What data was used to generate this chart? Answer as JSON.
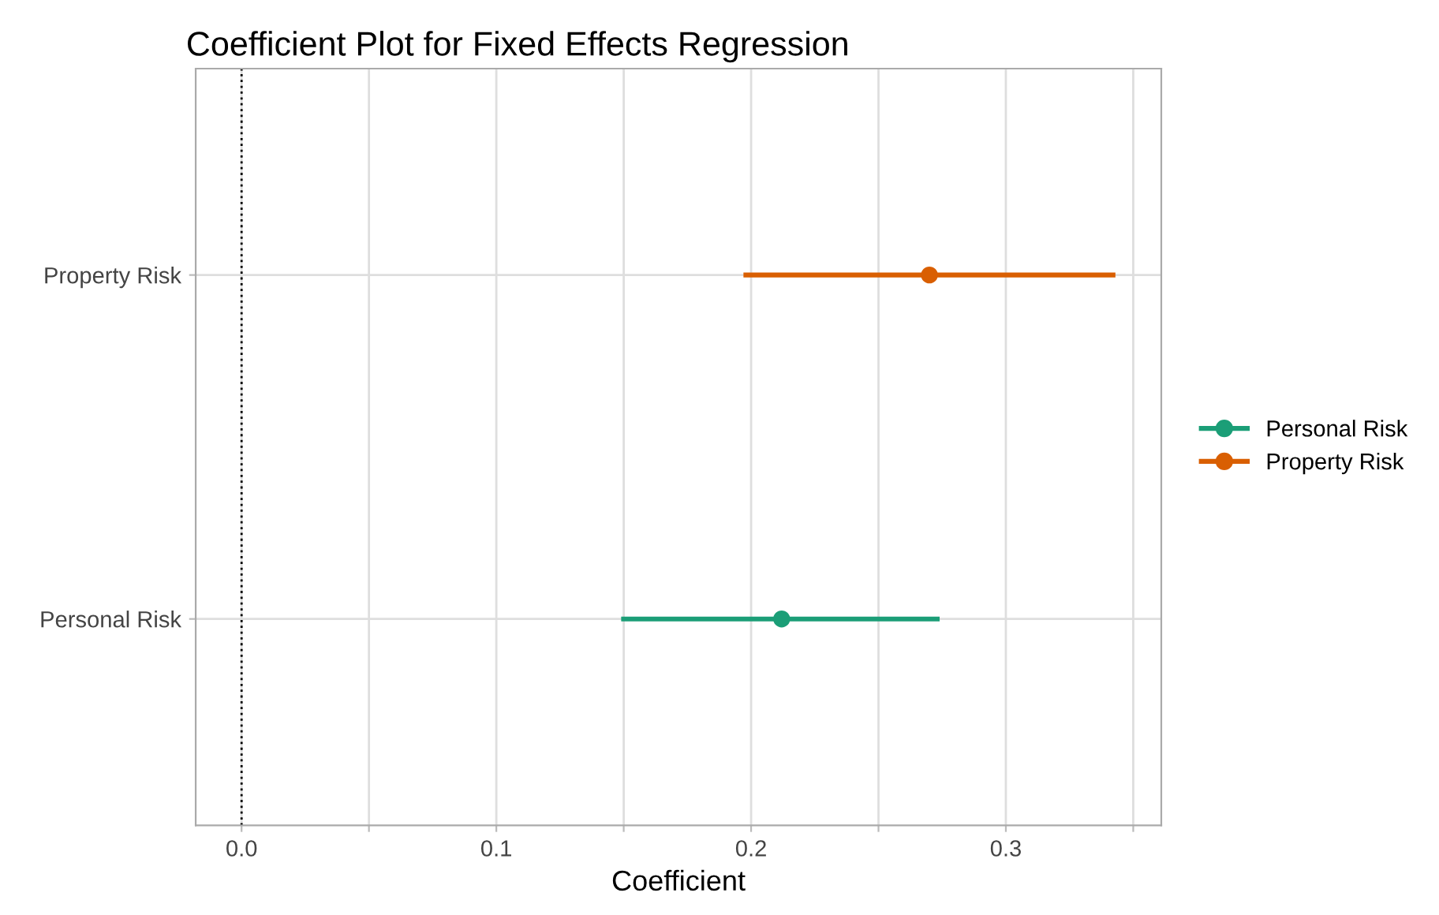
{
  "chart_data": {
    "type": "scatter",
    "orientation": "horizontal",
    "title": "Coefficient Plot for Fixed Effects Regression",
    "xlabel": "Coefficient",
    "categories": [
      "Property Risk",
      "Personal Risk"
    ],
    "series": [
      {
        "name": "Personal Risk",
        "color": "#1b9e77",
        "values": [
          null,
          0.212
        ],
        "errors": [
          null,
          [
            0.149,
            0.274
          ]
        ]
      },
      {
        "name": "Property Risk",
        "color": "#d95f02",
        "values": [
          0.27,
          null
        ],
        "errors": [
          [
            0.197,
            0.343
          ],
          null
        ]
      }
    ],
    "xlim": [
      -0.018,
      0.361
    ],
    "xticks": [
      {
        "value": 0,
        "label": "0.0"
      },
      {
        "value": 0.05,
        "label": null
      },
      0.1,
      {
        "value": 0.15,
        "label": null
      },
      0.2,
      {
        "value": 0.25,
        "label": null
      },
      0.3,
      {
        "value": 0.35,
        "label": null
      }
    ],
    "ref_lines": [
      {
        "axis": "x",
        "value": 0,
        "line_style": "dotted",
        "color": "#000000"
      }
    ],
    "grid": true,
    "legend": "right",
    "marker": "circle"
  }
}
